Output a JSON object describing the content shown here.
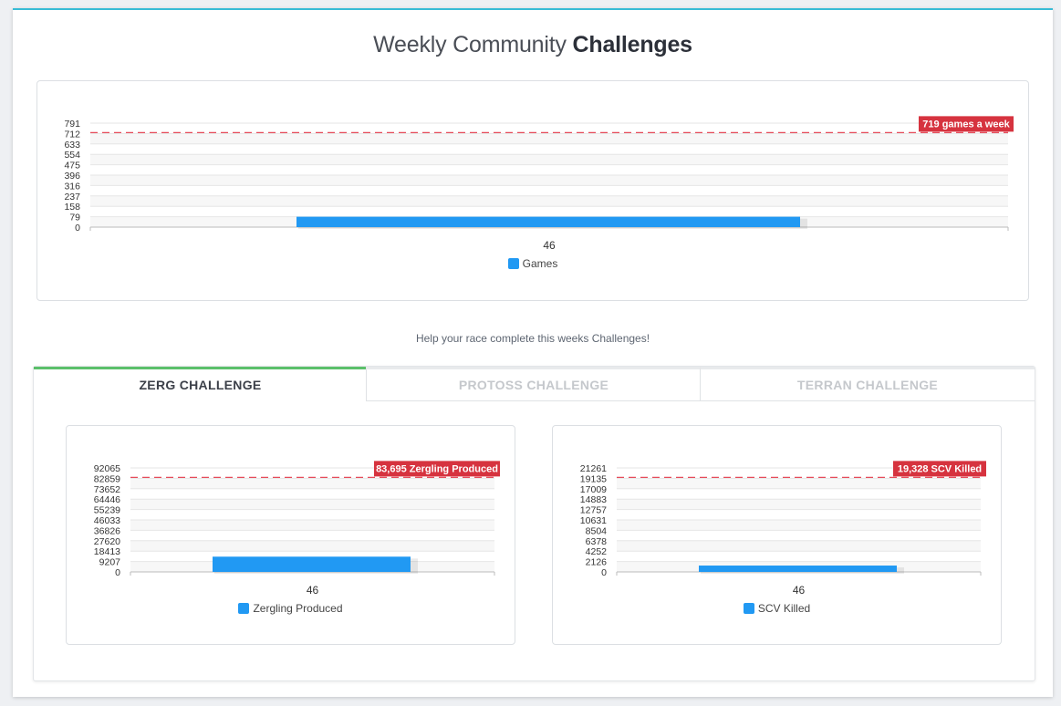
{
  "page": {
    "title_light": "Weekly Community ",
    "title_bold": "Challenges",
    "help_text": "Help your race complete this weeks Challenges!"
  },
  "colors": {
    "bar": "#2199f3",
    "target_line": "#e64b5a",
    "target_label_bg": "#d6333f",
    "active_tab_border": "#5bc06a",
    "header_border": "#38bcd6"
  },
  "tabs": [
    {
      "label": "ZERG CHALLENGE",
      "active": true
    },
    {
      "label": "PROTOSS CHALLENGE",
      "active": false
    },
    {
      "label": "TERRAN CHALLENGE",
      "active": false
    }
  ],
  "chart_data": [
    {
      "type": "bar",
      "categories": [
        "46"
      ],
      "series": [
        {
          "name": "Games",
          "values": [
            79
          ]
        }
      ],
      "yticks": [
        "791",
        "712",
        "633",
        "554",
        "475",
        "396",
        "316",
        "237",
        "158",
        "79",
        "0"
      ],
      "ylim": [
        0,
        791
      ],
      "target": {
        "value": 719,
        "label": "719 games a week"
      },
      "grid": true,
      "legend": "bottom"
    },
    {
      "type": "bar",
      "categories": [
        "46"
      ],
      "series": [
        {
          "name": "Zergling Produced",
          "values": [
            13500
          ]
        }
      ],
      "yticks": [
        "92065",
        "82859",
        "73652",
        "64446",
        "55239",
        "46033",
        "36826",
        "27620",
        "18413",
        "9207",
        "0"
      ],
      "ylim": [
        0,
        92065
      ],
      "target": {
        "value": 83695,
        "label": "83,695 Zergling Produced"
      },
      "grid": true,
      "legend": "bottom"
    },
    {
      "type": "bar",
      "categories": [
        "46"
      ],
      "series": [
        {
          "name": "SCV Killed",
          "values": [
            1300
          ]
        }
      ],
      "yticks": [
        "21261",
        "19135",
        "17009",
        "14883",
        "12757",
        "10631",
        "8504",
        "6378",
        "4252",
        "2126",
        "0"
      ],
      "ylim": [
        0,
        21261
      ],
      "target": {
        "value": 19328,
        "label": "19,328 SCV Killed"
      },
      "grid": true,
      "legend": "bottom"
    }
  ]
}
